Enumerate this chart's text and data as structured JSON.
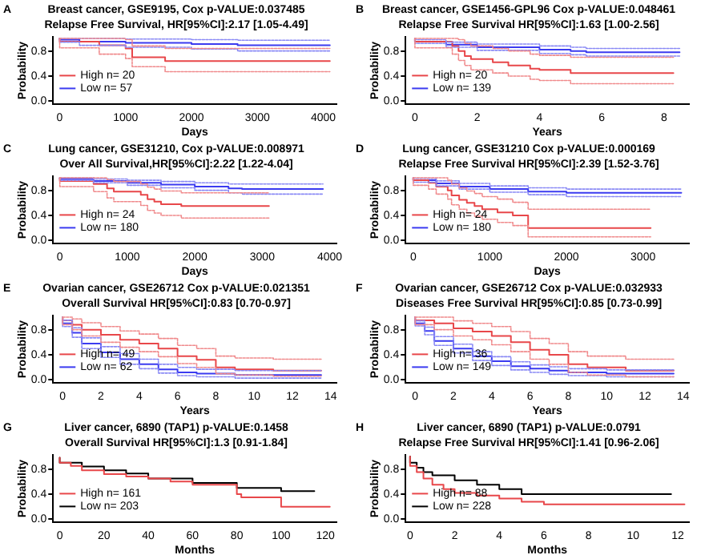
{
  "chart_data": [
    {
      "type": "step",
      "title": "Breast cancer, GSE9195, Cox p-VALUE:0.037485",
      "subtitle": "Relapse Free Survival, HR[95%CI]:2.17 [1.05-4.49]",
      "xlabel": "Days",
      "ylabel": "Probability",
      "annotations": [
        "A"
      ],
      "xlim": [
        -100,
        4200
      ],
      "xticks": [
        0,
        1000,
        2000,
        3000,
        4000
      ],
      "ylim": [
        -0.05,
        1.03
      ],
      "yticks": [
        {
          "value": 0,
          "label": "0.0"
        },
        {
          "value": 0.4,
          "label": "0.4"
        },
        {
          "value": 0.8,
          "label": "0.8"
        }
      ],
      "legend": "bottom left",
      "series": [
        {
          "name": "High n= 20",
          "color": "#e8474a",
          "x": [
            0,
            600,
            1000,
            1100,
            1600,
            2150,
            4100
          ],
          "values": [
            1,
            0.95,
            0.89,
            0.84,
            0.7,
            0.64,
            0.64
          ]
        },
        {
          "color": "#f08a8c",
          "line_style": "dotted",
          "x": [
            0,
            600,
            1000,
            1100,
            1600,
            2150,
            4100
          ],
          "values": [
            1,
            0.85,
            0.75,
            0.68,
            0.55,
            0.47,
            0.47
          ]
        },
        {
          "color": "#f08a8c",
          "line_style": "dotted",
          "x": [
            0,
            600,
            1000,
            1100,
            1600,
            2150,
            4100
          ],
          "values": [
            1,
            1,
            1,
            0.98,
            0.88,
            0.84,
            0.84
          ]
        },
        {
          "name": "Low n= 57",
          "color": "#3b3bf0",
          "x": [
            0,
            300,
            1000,
            2000,
            2700,
            3000,
            4100
          ],
          "values": [
            1,
            0.98,
            0.95,
            0.93,
            0.91,
            0.89,
            0.89
          ]
        },
        {
          "color": "#8a8af5",
          "line_style": "dotted",
          "x": [
            0,
            300,
            1000,
            2000,
            2700,
            3000,
            4100
          ],
          "values": [
            1,
            0.94,
            0.89,
            0.86,
            0.83,
            0.8,
            0.8
          ]
        },
        {
          "color": "#8a8af5",
          "line_style": "dotted",
          "x": [
            0,
            300,
            1000,
            2000,
            2700,
            3000,
            4100
          ],
          "values": [
            1,
            1,
            1,
            0.99,
            0.98,
            0.97,
            0.97
          ]
        }
      ]
    },
    {
      "type": "step",
      "title": "Breast cancer, GSE1456-GPL96 Cox p-VALUE:0.048461",
      "subtitle": "Relapse Free Survival HR[95%CI]:1.63 [1.00-2.56]",
      "xlabel": "Years",
      "ylabel": "Probability",
      "annotations": [
        "B"
      ],
      "xlim": [
        -0.3,
        8.8
      ],
      "xticks": [
        0,
        2,
        4,
        6,
        8
      ],
      "ylim": [
        -0.05,
        1.03
      ],
      "yticks": [
        {
          "value": 0,
          "label": "0.0"
        },
        {
          "value": 0.4,
          "label": "0.4"
        },
        {
          "value": 0.8,
          "label": "0.8"
        }
      ],
      "legend": "bottom left",
      "series": [
        {
          "name": "High n= 20",
          "color": "#e8474a",
          "x": [
            0,
            1.2,
            1.4,
            1.6,
            1.8,
            2.5,
            3,
            3.7,
            4,
            5,
            6.5,
            8.3
          ],
          "values": [
            1,
            0.95,
            0.88,
            0.8,
            0.72,
            0.67,
            0.62,
            0.57,
            0.52,
            0.5,
            0.45,
            0.45
          ]
        },
        {
          "color": "#f08a8c",
          "line_style": "dotted",
          "x": [
            0,
            1.2,
            1.4,
            1.6,
            1.8,
            2.5,
            3,
            3.7,
            4,
            5,
            6.5,
            8.3
          ],
          "values": [
            1,
            0.85,
            0.75,
            0.65,
            0.57,
            0.5,
            0.45,
            0.4,
            0.35,
            0.33,
            0.28,
            0.28
          ]
        },
        {
          "color": "#f08a8c",
          "line_style": "dotted",
          "x": [
            0,
            1.2,
            1.4,
            1.6,
            1.8,
            2.5,
            3,
            3.7,
            4,
            5,
            6.5,
            8.3
          ],
          "values": [
            1,
            1,
            1,
            0.98,
            0.92,
            0.88,
            0.84,
            0.8,
            0.75,
            0.73,
            0.7,
            0.7
          ]
        },
        {
          "name": "Low n= 139",
          "color": "#3b3bf0",
          "x": [
            0,
            1,
            2,
            4,
            5,
            5.5,
            8.5
          ],
          "values": [
            1,
            0.95,
            0.9,
            0.86,
            0.82,
            0.8,
            0.78
          ]
        },
        {
          "color": "#8a8af5",
          "line_style": "dotted",
          "x": [
            0,
            1,
            2,
            4,
            5,
            5.5,
            8.5
          ],
          "values": [
            1,
            0.92,
            0.86,
            0.81,
            0.76,
            0.74,
            0.72
          ]
        },
        {
          "color": "#8a8af5",
          "line_style": "dotted",
          "x": [
            0,
            1,
            2,
            4,
            5,
            5.5,
            8.5
          ],
          "values": [
            1,
            0.98,
            0.94,
            0.91,
            0.88,
            0.86,
            0.84
          ]
        }
      ]
    },
    {
      "type": "step",
      "title": "Lung cancer, GSE31210, Cox p-VALUE:0.008971",
      "subtitle": "Over All Survival,HR[95%CI]:2.22 [1.22-4.04]",
      "xlabel": "Days",
      "ylabel": "Probability",
      "annotations": [
        "C"
      ],
      "xlim": [
        -100,
        4100
      ],
      "xticks": [
        0,
        1000,
        2000,
        3000,
        4000
      ],
      "ylim": [
        -0.05,
        1.03
      ],
      "yticks": [
        {
          "value": 0,
          "label": "0.0"
        },
        {
          "value": 0.4,
          "label": "0.4"
        },
        {
          "value": 0.8,
          "label": "0.8"
        }
      ],
      "legend": "bottom left",
      "series": [
        {
          "name": "High n= 24",
          "color": "#e8474a",
          "x": [
            0,
            500,
            700,
            800,
            1200,
            1300,
            1400,
            1500,
            1800,
            1900,
            3100
          ],
          "values": [
            1,
            0.95,
            0.9,
            0.83,
            0.78,
            0.73,
            0.66,
            0.62,
            0.58,
            0.55,
            0.55
          ]
        },
        {
          "color": "#f08a8c",
          "line_style": "dotted",
          "x": [
            0,
            500,
            700,
            800,
            1200,
            1300,
            1400,
            1500,
            1800,
            1900,
            3100
          ],
          "values": [
            1,
            0.86,
            0.78,
            0.68,
            0.62,
            0.56,
            0.48,
            0.44,
            0.4,
            0.36,
            0.36
          ]
        },
        {
          "color": "#f08a8c",
          "line_style": "dotted",
          "x": [
            0,
            500,
            700,
            800,
            1200,
            1300,
            1400,
            1500,
            1800,
            1900,
            3100
          ],
          "values": [
            1,
            1,
            1,
            0.97,
            0.94,
            0.9,
            0.85,
            0.82,
            0.79,
            0.76,
            0.76
          ]
        },
        {
          "name": "Low n= 180",
          "color": "#3b3bf0",
          "x": [
            0,
            500,
            1000,
            1500,
            2000,
            2500,
            2700,
            3900
          ],
          "values": [
            1,
            0.98,
            0.95,
            0.92,
            0.89,
            0.86,
            0.83,
            0.82
          ]
        },
        {
          "color": "#8a8af5",
          "line_style": "dotted",
          "x": [
            0,
            500,
            1000,
            1500,
            2000,
            2500,
            2700,
            3900
          ],
          "values": [
            1,
            0.96,
            0.92,
            0.88,
            0.84,
            0.8,
            0.76,
            0.74
          ]
        },
        {
          "color": "#8a8af5",
          "line_style": "dotted",
          "x": [
            0,
            500,
            1000,
            1500,
            2000,
            2500,
            2700,
            3900
          ],
          "values": [
            1,
            1,
            0.98,
            0.96,
            0.94,
            0.92,
            0.9,
            0.9
          ]
        }
      ]
    },
    {
      "type": "step",
      "title": "Lung cancer, GSE31210 Cox p-VALUE:0.000169",
      "subtitle": "Relapse Free Survival HR[95%CI]:2.39 [1.52-3.76]",
      "xlabel": "Days",
      "ylabel": "Probability",
      "annotations": [
        "D"
      ],
      "xlim": [
        -100,
        3600
      ],
      "xticks": [
        0,
        1000,
        2000,
        3000
      ],
      "ylim": [
        -0.05,
        1.03
      ],
      "yticks": [
        {
          "value": 0,
          "label": "0.0"
        },
        {
          "value": 0.4,
          "label": "0.4"
        },
        {
          "value": 0.8,
          "label": "0.8"
        }
      ],
      "legend": "bottom left",
      "series": [
        {
          "name": "High n= 24",
          "color": "#e8474a",
          "x": [
            0,
            200,
            300,
            450,
            500,
            600,
            700,
            800,
            900,
            1100,
            1300,
            1500,
            2300,
            3100
          ],
          "values": [
            1,
            0.96,
            0.92,
            0.86,
            0.8,
            0.72,
            0.65,
            0.6,
            0.55,
            0.5,
            0.45,
            0.4,
            0.2,
            0.2
          ]
        },
        {
          "color": "#f08a8c",
          "line_style": "dotted",
          "x": [
            0,
            200,
            300,
            450,
            500,
            600,
            700,
            800,
            900,
            1100,
            1300,
            1500,
            2300,
            3100
          ],
          "values": [
            1,
            0.88,
            0.82,
            0.74,
            0.66,
            0.57,
            0.5,
            0.44,
            0.39,
            0.34,
            0.29,
            0.24,
            0.06,
            0.06
          ]
        },
        {
          "color": "#f08a8c",
          "line_style": "dotted",
          "x": [
            0,
            200,
            300,
            450,
            500,
            600,
            700,
            800,
            900,
            1100,
            1300,
            1500,
            2300,
            3100
          ],
          "values": [
            1,
            1,
            1,
            1,
            0.96,
            0.9,
            0.84,
            0.79,
            0.75,
            0.7,
            0.66,
            0.61,
            0.5,
            0.5
          ]
        },
        {
          "name": "Low n= 180",
          "color": "#3b3bf0",
          "x": [
            0,
            300,
            600,
            1000,
            1500,
            2000,
            3500
          ],
          "values": [
            1,
            0.96,
            0.91,
            0.86,
            0.82,
            0.78,
            0.76
          ]
        },
        {
          "color": "#8a8af5",
          "line_style": "dotted",
          "x": [
            0,
            300,
            600,
            1000,
            1500,
            2000,
            3500
          ],
          "values": [
            1,
            0.93,
            0.87,
            0.82,
            0.77,
            0.73,
            0.7
          ]
        },
        {
          "color": "#8a8af5",
          "line_style": "dotted",
          "x": [
            0,
            300,
            600,
            1000,
            1500,
            2000,
            3500
          ],
          "values": [
            1,
            0.99,
            0.95,
            0.91,
            0.87,
            0.84,
            0.82
          ]
        }
      ]
    },
    {
      "type": "step",
      "title": "Ovarian cancer, GSE26712 Cox p-VALUE:0.021351",
      "subtitle": "Overall Survival HR[95%CI]:0.83 [0.70-0.97]",
      "xlabel": "Years",
      "ylabel": "Probability",
      "annotations": [
        "E"
      ],
      "xlim": [
        -0.5,
        14.3
      ],
      "xticks": [
        0,
        2,
        4,
        6,
        8,
        10,
        12,
        14
      ],
      "ylim": [
        -0.05,
        1.03
      ],
      "yticks": [
        {
          "value": 0,
          "label": "0.0"
        },
        {
          "value": 0.4,
          "label": "0.4"
        },
        {
          "value": 0.8,
          "label": "0.8"
        }
      ],
      "legend": "bottom left",
      "series": [
        {
          "name": "High n= 49",
          "color": "#e8474a",
          "x": [
            0,
            0.5,
            1,
            2,
            3,
            4,
            5,
            6,
            7,
            8,
            9,
            11,
            13.5
          ],
          "values": [
            1,
            0.95,
            0.88,
            0.8,
            0.72,
            0.64,
            0.58,
            0.5,
            0.38,
            0.32,
            0.2,
            0.17,
            0.15
          ]
        },
        {
          "color": "#f08a8c",
          "line_style": "dotted",
          "x": [
            0,
            0.5,
            1,
            2,
            3,
            4,
            5,
            6,
            7,
            8,
            9,
            11,
            13.5
          ],
          "values": [
            1,
            0.88,
            0.8,
            0.7,
            0.6,
            0.52,
            0.45,
            0.37,
            0.26,
            0.2,
            0.1,
            0.08,
            0.06
          ]
        },
        {
          "color": "#f08a8c",
          "line_style": "dotted",
          "x": [
            0,
            0.5,
            1,
            2,
            3,
            4,
            5,
            6,
            7,
            8,
            9,
            11,
            13.5
          ],
          "values": [
            1,
            1,
            0.97,
            0.91,
            0.85,
            0.78,
            0.73,
            0.66,
            0.55,
            0.5,
            0.38,
            0.35,
            0.33
          ]
        },
        {
          "name": "Low n= 62",
          "color": "#3b3bf0",
          "x": [
            0,
            0.5,
            1,
            2,
            3,
            4,
            5,
            6,
            7,
            9,
            13.5
          ],
          "values": [
            1,
            0.9,
            0.75,
            0.58,
            0.44,
            0.33,
            0.25,
            0.17,
            0.12,
            0.1,
            0.08
          ]
        },
        {
          "color": "#8a8af5",
          "line_style": "dotted",
          "x": [
            0,
            0.5,
            1,
            2,
            3,
            4,
            5,
            6,
            7,
            9,
            13.5
          ],
          "values": [
            1,
            0.85,
            0.68,
            0.5,
            0.36,
            0.25,
            0.18,
            0.11,
            0.07,
            0.05,
            0.03
          ]
        },
        {
          "color": "#8a8af5",
          "line_style": "dotted",
          "x": [
            0,
            0.5,
            1,
            2,
            3,
            4,
            5,
            6,
            7,
            9,
            13.5
          ],
          "values": [
            1,
            0.95,
            0.83,
            0.67,
            0.53,
            0.42,
            0.33,
            0.25,
            0.2,
            0.17,
            0.15
          ]
        }
      ]
    },
    {
      "type": "step",
      "title": "Ovarian cancer, GSE26712 Cox p-VALUE:0.032933",
      "subtitle": "Diseases Free Survival HR[95%CI]:0.85 [0.73-0.99]",
      "xlabel": "Years",
      "ylabel": "Probability",
      "annotations": [
        "F"
      ],
      "xlim": [
        -0.5,
        14.3
      ],
      "xticks": [
        0,
        2,
        4,
        6,
        8,
        10,
        12,
        14
      ],
      "ylim": [
        -0.05,
        1.03
      ],
      "yticks": [
        {
          "value": 0,
          "label": "0.0"
        },
        {
          "value": 0.4,
          "label": "0.4"
        },
        {
          "value": 0.8,
          "label": "0.8"
        }
      ],
      "legend": "bottom left",
      "series": [
        {
          "name": "High n= 36",
          "color": "#e8474a",
          "x": [
            0,
            1,
            2,
            3,
            4,
            5,
            6,
            7,
            8,
            9,
            11,
            13.5
          ],
          "values": [
            1,
            0.95,
            0.9,
            0.82,
            0.77,
            0.7,
            0.6,
            0.48,
            0.4,
            0.25,
            0.2,
            0.15
          ]
        },
        {
          "color": "#f08a8c",
          "line_style": "dotted",
          "x": [
            0,
            1,
            2,
            3,
            4,
            5,
            6,
            7,
            8,
            9,
            11,
            13.5
          ],
          "values": [
            1,
            0.88,
            0.8,
            0.7,
            0.64,
            0.56,
            0.45,
            0.33,
            0.25,
            0.12,
            0.08,
            0.05
          ]
        },
        {
          "color": "#f08a8c",
          "line_style": "dotted",
          "x": [
            0,
            1,
            2,
            3,
            4,
            5,
            6,
            7,
            8,
            9,
            11,
            13.5
          ],
          "values": [
            1,
            1,
            1,
            0.94,
            0.9,
            0.85,
            0.77,
            0.66,
            0.58,
            0.45,
            0.38,
            0.33
          ]
        },
        {
          "name": "Low n= 149",
          "color": "#3b3bf0",
          "x": [
            0,
            0.5,
            1,
            2,
            3,
            4,
            5,
            6,
            7,
            8,
            10,
            13.5
          ],
          "values": [
            1,
            0.9,
            0.78,
            0.62,
            0.5,
            0.38,
            0.3,
            0.22,
            0.18,
            0.15,
            0.12,
            0.1
          ]
        },
        {
          "color": "#8a8af5",
          "line_style": "dotted",
          "x": [
            0,
            0.5,
            1,
            2,
            3,
            4,
            5,
            6,
            7,
            8,
            10,
            13.5
          ],
          "values": [
            1,
            0.86,
            0.72,
            0.55,
            0.43,
            0.31,
            0.23,
            0.16,
            0.12,
            0.09,
            0.07,
            0.05
          ]
        },
        {
          "color": "#8a8af5",
          "line_style": "dotted",
          "x": [
            0,
            0.5,
            1,
            2,
            3,
            4,
            5,
            6,
            7,
            8,
            10,
            13.5
          ],
          "values": [
            1,
            0.94,
            0.84,
            0.69,
            0.57,
            0.45,
            0.37,
            0.29,
            0.24,
            0.21,
            0.18,
            0.16
          ]
        }
      ]
    },
    {
      "type": "step",
      "title": "Liver cancer, 6890 (TAP1) p-VALUE:0.1458",
      "subtitle": "Overall Survival HR[95%CI]:1.3 [0.91-1.84]",
      "xlabel": "Months",
      "ylabel": "Probability",
      "annotations": [
        "G"
      ],
      "xlim": [
        -3,
        125
      ],
      "xticks": [
        0,
        20,
        40,
        60,
        80,
        100,
        120
      ],
      "ylim": [
        -0.05,
        1.03
      ],
      "yticks": [
        {
          "value": 0,
          "label": "0.0"
        },
        {
          "value": 0.4,
          "label": "0.4"
        },
        {
          "value": 0.8,
          "label": "0.8"
        }
      ],
      "legend": "bottom left",
      "series": [
        {
          "name": "High n= 161",
          "color": "#e8474a",
          "x": [
            0,
            5,
            10,
            20,
            30,
            40,
            50,
            60,
            80,
            82,
            100,
            106,
            122
          ],
          "values": [
            0.98,
            0.9,
            0.85,
            0.78,
            0.72,
            0.68,
            0.65,
            0.6,
            0.55,
            0.4,
            0.35,
            0.2,
            0.2
          ]
        },
        {
          "name": "Low n= 203",
          "color": "#000000",
          "x": [
            0,
            10,
            20,
            30,
            40,
            60,
            80,
            82,
            100,
            101,
            115
          ],
          "values": [
            0.98,
            0.9,
            0.84,
            0.78,
            0.73,
            0.65,
            0.58,
            0.5,
            0.5,
            0.45,
            0.45
          ]
        }
      ]
    },
    {
      "type": "step",
      "title": "Liver cancer, 6890 (TAP1) p-VALUE:0.0791",
      "subtitle": "Relapse Free Survival HR[95%CI]:1.41 [0.96-2.06]",
      "xlabel": "Months",
      "ylabel": "Probability",
      "annotations": [
        "H"
      ],
      "xlim": [
        -0.2,
        12.5
      ],
      "xticks": [
        0,
        2,
        4,
        6,
        8,
        10,
        12
      ],
      "ylim": [
        -0.05,
        1.03
      ],
      "yticks": [
        {
          "value": 0,
          "label": "0.0"
        },
        {
          "value": 0.4,
          "label": "0.4"
        },
        {
          "value": 0.8,
          "label": "0.8"
        }
      ],
      "legend": "bottom left",
      "series": [
        {
          "name": "High n= 88",
          "color": "#e8474a",
          "x": [
            0,
            0.3,
            0.6,
            1,
            1.5,
            2,
            3,
            4,
            5,
            6,
            7,
            12.3
          ],
          "values": [
            1,
            0.85,
            0.75,
            0.65,
            0.55,
            0.48,
            0.42,
            0.38,
            0.33,
            0.28,
            0.24,
            0.24
          ]
        },
        {
          "name": "Low n= 228",
          "color": "#000000",
          "x": [
            0,
            0.3,
            0.6,
            1,
            2,
            3,
            4,
            5,
            5.6,
            11.7
          ],
          "values": [
            1,
            0.9,
            0.82,
            0.75,
            0.7,
            0.62,
            0.55,
            0.48,
            0.4,
            0.4
          ]
        }
      ]
    }
  ]
}
